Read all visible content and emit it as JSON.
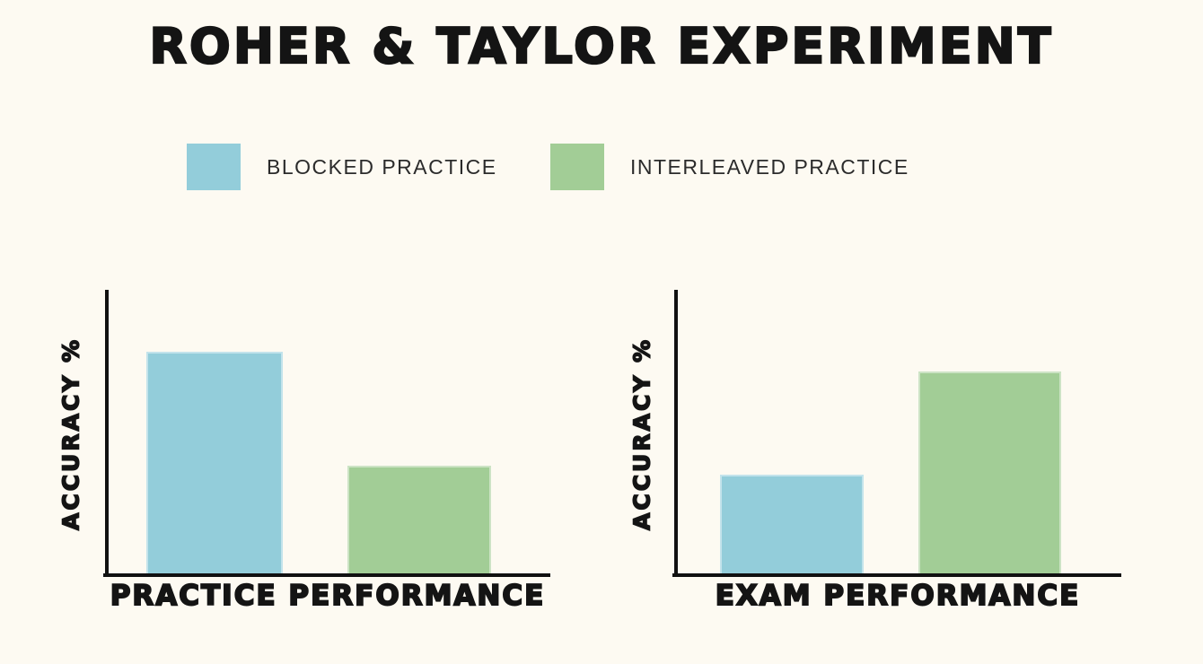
{
  "page": {
    "background": "#FDFAF2"
  },
  "title": "ROHER & TAYLOR EXPERIMENT",
  "colors": {
    "blocked_practice": "#93CDDA",
    "interleaved_practice": "#A2CD96",
    "axis": "#111111",
    "text": "#141414",
    "background": "#FDFAF2"
  },
  "legend": {
    "items": [
      {
        "label": "BLOCKED PRACTICE",
        "color": "#93CDDA"
      },
      {
        "label": "INTERLEAVED PRACTICE",
        "color": "#A2CD96"
      }
    ]
  },
  "chart_data": [
    {
      "type": "bar",
      "title": "Practice Performance",
      "categories": [
        "Blocked Practice",
        "Interleaved Practice"
      ],
      "values": [
        79,
        39
      ],
      "colors": [
        "#93CDDA",
        "#A2CD96"
      ],
      "xlabel": "PRACTICE PERFORMANCE",
      "ylabel": "ACCURACY %",
      "ylim": [
        0,
        100
      ],
      "yticks": [],
      "grid": false,
      "legend_position": "top"
    },
    {
      "type": "bar",
      "title": "Exam Performance",
      "categories": [
        "Blocked Practice",
        "Interleaved Practice"
      ],
      "values": [
        36,
        72
      ],
      "colors": [
        "#93CDDA",
        "#A2CD96"
      ],
      "xlabel": "EXAM PERFORMANCE",
      "ylabel": "ACCURACY %",
      "ylim": [
        0,
        100
      ],
      "yticks": [],
      "grid": false,
      "legend_position": "top"
    }
  ]
}
